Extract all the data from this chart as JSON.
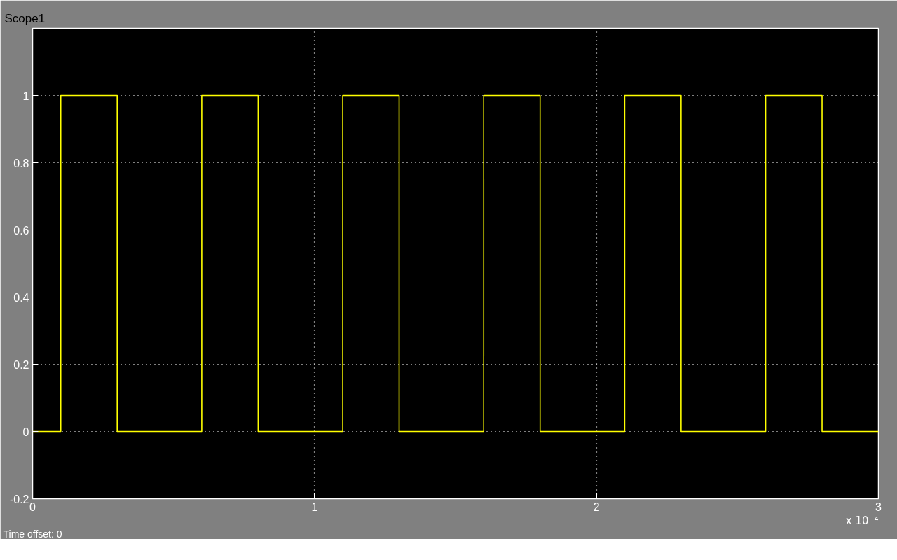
{
  "chart_data": {
    "type": "step",
    "title": "Scope1",
    "xlabel": "x 10⁻⁴",
    "annotations": [
      "Time offset: 0"
    ],
    "x": [
      0,
      0.1,
      0.3,
      0.6,
      0.8,
      1.1,
      1.3,
      1.6,
      1.8,
      2.1,
      2.3,
      2.6,
      2.8,
      3.0
    ],
    "series": [
      {
        "color": "#ffff00",
        "values": [
          0,
          1,
          0,
          1,
          0,
          1,
          0,
          1,
          0,
          1,
          0,
          1,
          0,
          0
        ]
      }
    ],
    "xlim": [
      0,
      3
    ],
    "ylim": [
      -0.2,
      1.2
    ],
    "xticks": [
      0,
      1,
      2,
      3
    ],
    "yticks": [
      -0.2,
      0,
      0.2,
      0.4,
      0.6,
      0.8,
      1
    ],
    "grid": true,
    "line_style": "solid"
  }
}
